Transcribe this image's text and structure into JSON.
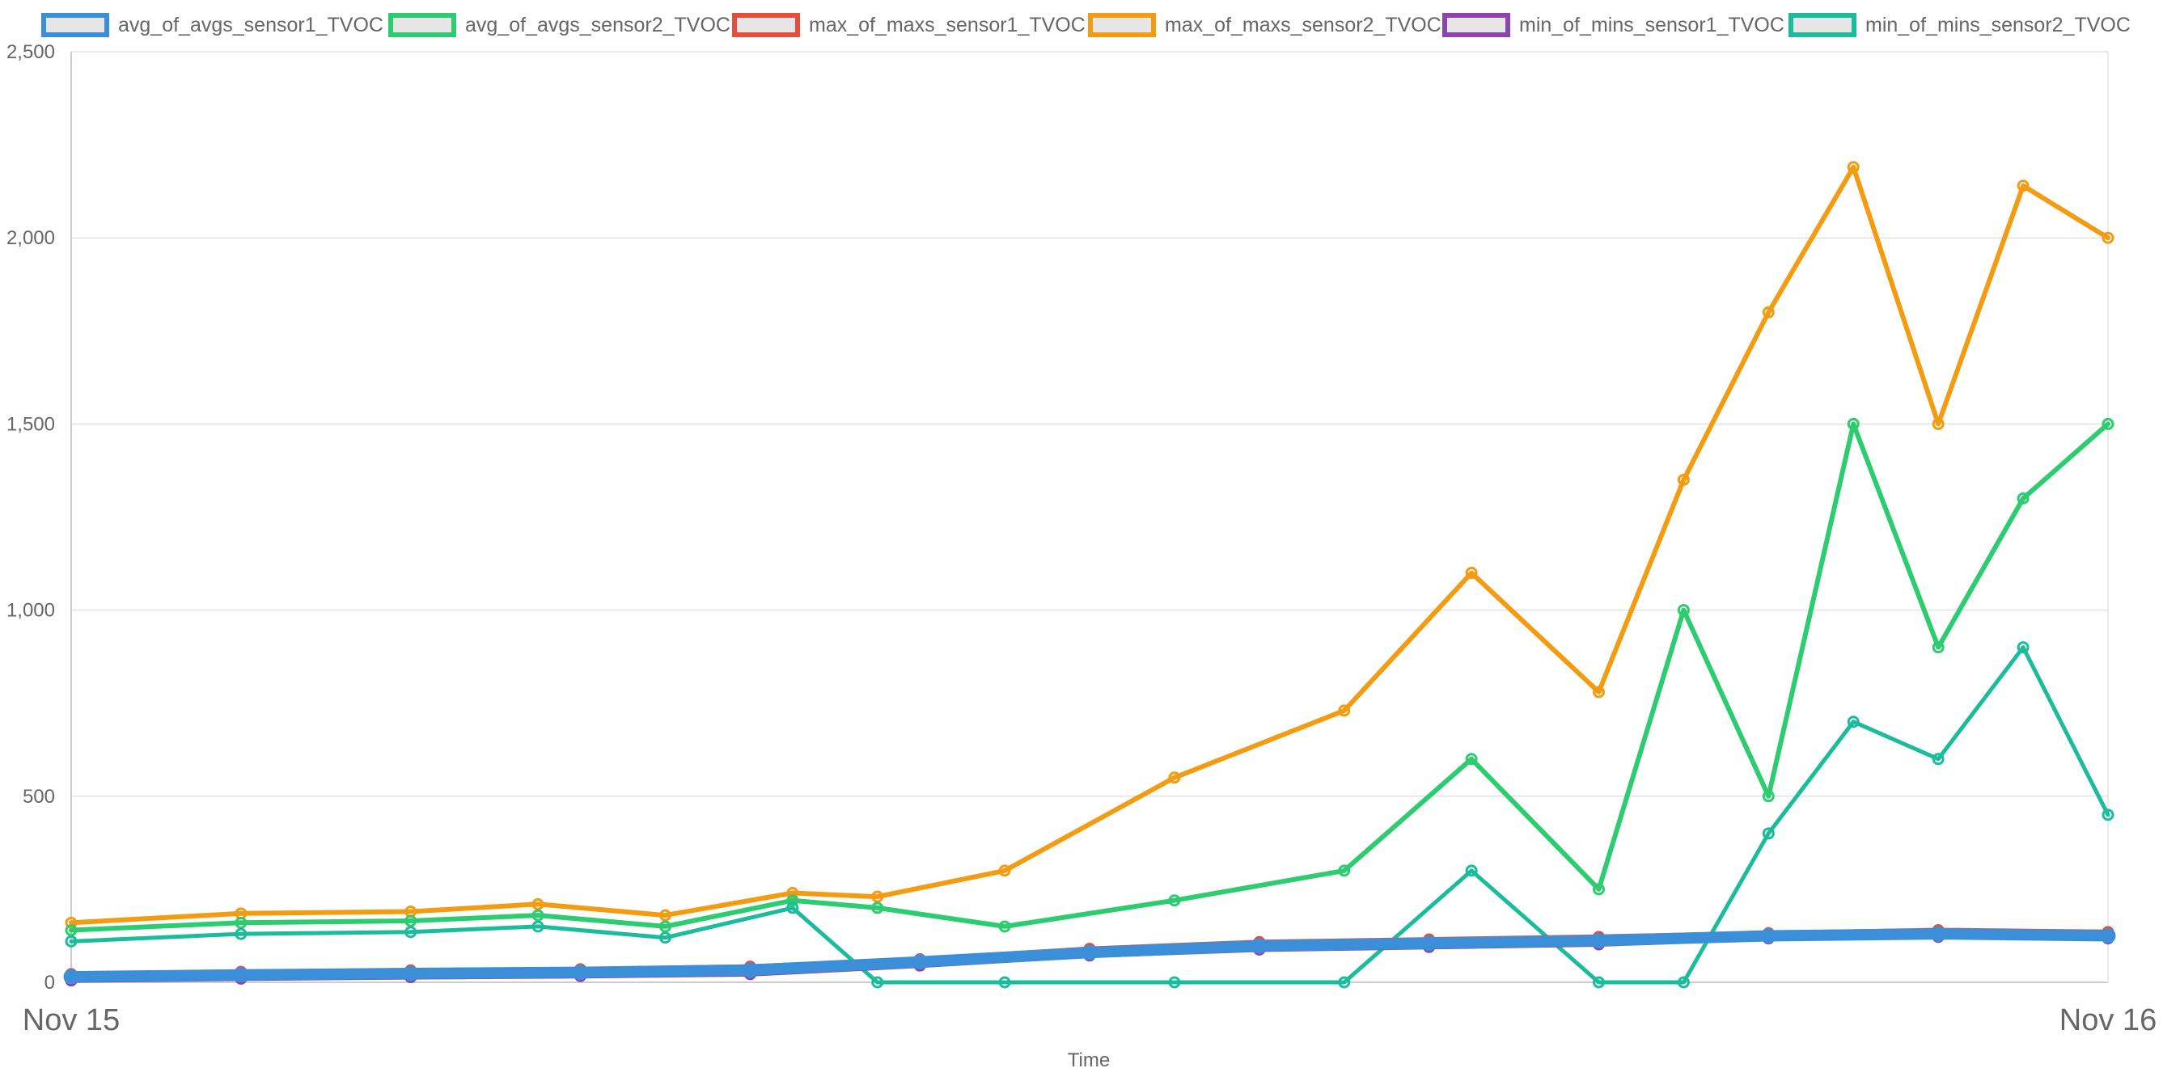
{
  "chart_data": {
    "type": "line",
    "title": "",
    "xlabel": "Time",
    "ylabel": "",
    "x_range": [
      "2023-11-15T00:00",
      "2023-11-16T00:00"
    ],
    "ylim": [
      0,
      2500
    ],
    "yticks": [
      0,
      500,
      1000,
      1500,
      2000,
      2500
    ],
    "ytick_labels": [
      "0",
      "500",
      "1,000",
      "1,500",
      "2,000",
      "2,500"
    ],
    "xtick_labels": [
      "Nov 15",
      "Nov 16"
    ],
    "grid": true,
    "legend_position": "top",
    "series": [
      {
        "name": "avg_of_avgs_sensor1_TVOC",
        "color": "#3b8fd9",
        "x": [
          "2023-11-15T00:00",
          "2023-11-15T02:00",
          "2023-11-15T04:00",
          "2023-11-15T06:00",
          "2023-11-15T08:00",
          "2023-11-15T10:00",
          "2023-11-15T12:00",
          "2023-11-15T14:00",
          "2023-11-15T16:00",
          "2023-11-15T18:00",
          "2023-11-15T20:00",
          "2023-11-15T22:00",
          "2023-11-16T00:00"
        ],
        "y": [
          15,
          20,
          24,
          27,
          33,
          55,
          80,
          98,
          105,
          112,
          125,
          130,
          125
        ]
      },
      {
        "name": "avg_of_avgs_sensor2_TVOC",
        "color": "#2ecc71",
        "x": [
          "2023-11-15T00:00",
          "2023-11-15T02:00",
          "2023-11-15T04:00",
          "2023-11-15T05:30",
          "2023-11-15T07:00",
          "2023-11-15T08:30",
          "2023-11-15T09:30",
          "2023-11-15T11:00",
          "2023-11-15T13:00",
          "2023-11-15T15:00",
          "2023-11-15T16:30",
          "2023-11-15T18:00",
          "2023-11-15T19:00",
          "2023-11-15T20:00",
          "2023-11-15T21:00",
          "2023-11-15T22:00",
          "2023-11-15T23:00",
          "2023-11-16T00:00"
        ],
        "y": [
          140,
          160,
          165,
          180,
          150,
          220,
          200,
          150,
          220,
          300,
          600,
          250,
          1000,
          500,
          1500,
          900,
          1300,
          1500
        ]
      },
      {
        "name": "max_of_maxs_sensor1_TVOC",
        "color": "#e74c3c",
        "x": [
          "2023-11-15T00:00",
          "2023-11-15T02:00",
          "2023-11-15T04:00",
          "2023-11-15T06:00",
          "2023-11-15T08:00",
          "2023-11-15T10:00",
          "2023-11-15T12:00",
          "2023-11-15T14:00",
          "2023-11-15T16:00",
          "2023-11-15T18:00",
          "2023-11-15T20:00",
          "2023-11-15T22:00",
          "2023-11-16T00:00"
        ],
        "y": [
          22,
          28,
          32,
          35,
          42,
          62,
          90,
          108,
          115,
          122,
          132,
          140,
          135
        ]
      },
      {
        "name": "max_of_maxs_sensor2_TVOC",
        "color": "#f39c12",
        "x": [
          "2023-11-15T00:00",
          "2023-11-15T02:00",
          "2023-11-15T04:00",
          "2023-11-15T05:30",
          "2023-11-15T07:00",
          "2023-11-15T08:30",
          "2023-11-15T09:30",
          "2023-11-15T11:00",
          "2023-11-15T13:00",
          "2023-11-15T15:00",
          "2023-11-15T16:30",
          "2023-11-15T18:00",
          "2023-11-15T19:00",
          "2023-11-15T20:00",
          "2023-11-15T21:00",
          "2023-11-15T22:00",
          "2023-11-15T23:00",
          "2023-11-16T00:00"
        ],
        "y": [
          160,
          185,
          190,
          210,
          180,
          240,
          230,
          300,
          550,
          730,
          1100,
          780,
          1350,
          1800,
          2190,
          1500,
          2140,
          2000
        ]
      },
      {
        "name": "min_of_mins_sensor1_TVOC",
        "color": "#8e44ad",
        "x": [
          "2023-11-15T00:00",
          "2023-11-15T02:00",
          "2023-11-15T04:00",
          "2023-11-15T06:00",
          "2023-11-15T08:00",
          "2023-11-15T10:00",
          "2023-11-15T12:00",
          "2023-11-15T14:00",
          "2023-11-15T16:00",
          "2023-11-15T18:00",
          "2023-11-15T20:00",
          "2023-11-15T22:00",
          "2023-11-16T00:00"
        ],
        "y": [
          5,
          10,
          14,
          17,
          22,
          45,
          72,
          88,
          95,
          102,
          118,
          122,
          118
        ]
      },
      {
        "name": "min_of_mins_sensor2_TVOC",
        "color": "#1abc9c",
        "x": [
          "2023-11-15T00:00",
          "2023-11-15T02:00",
          "2023-11-15T04:00",
          "2023-11-15T05:30",
          "2023-11-15T07:00",
          "2023-11-15T08:30",
          "2023-11-15T09:30",
          "2023-11-15T11:00",
          "2023-11-15T13:00",
          "2023-11-15T15:00",
          "2023-11-15T16:30",
          "2023-11-15T18:00",
          "2023-11-15T19:00",
          "2023-11-15T20:00",
          "2023-11-15T21:00",
          "2023-11-15T22:00",
          "2023-11-15T23:00",
          "2023-11-16T00:00"
        ],
        "y": [
          110,
          130,
          135,
          150,
          120,
          200,
          0,
          0,
          0,
          0,
          300,
          0,
          0,
          400,
          700,
          600,
          900,
          450
        ]
      }
    ]
  }
}
